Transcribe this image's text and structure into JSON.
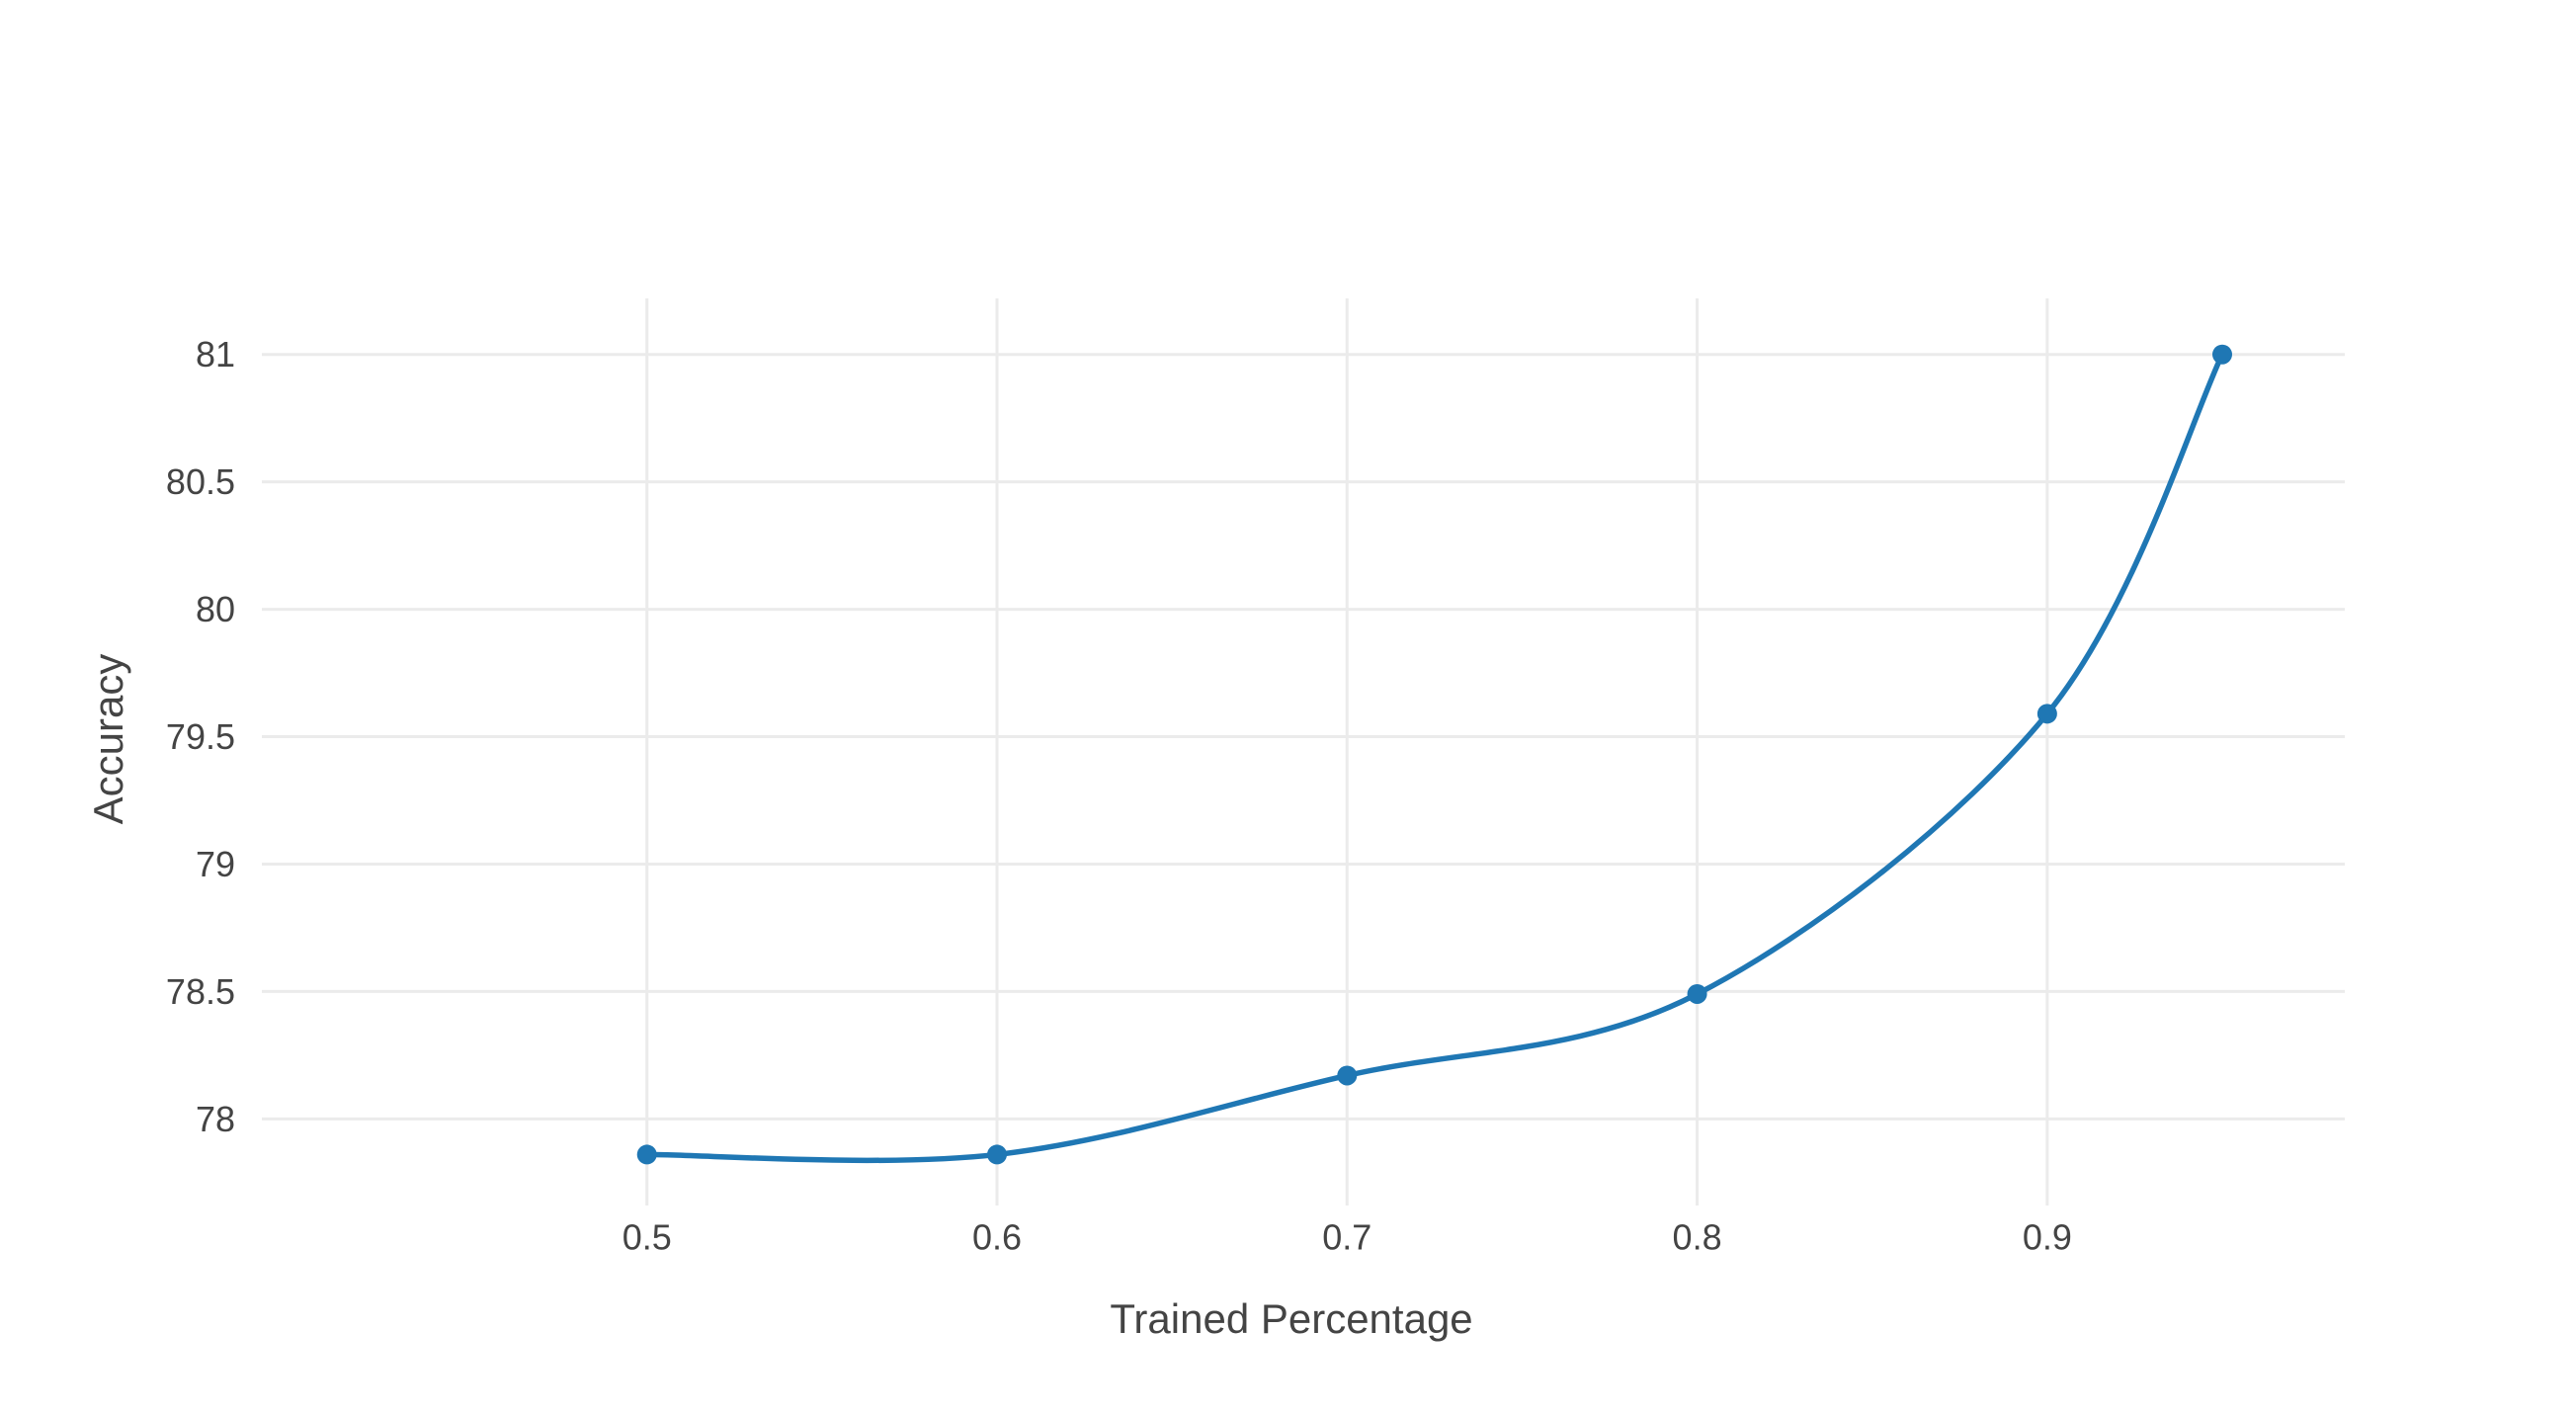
{
  "chart_data": {
    "type": "line",
    "xlabel": "Trained Percentage",
    "ylabel": "Accuracy",
    "xlim": [
      0.39,
      0.985
    ],
    "ylim": [
      77.66,
      81.22
    ],
    "x_ticks": [
      0.5,
      0.6,
      0.7,
      0.8,
      0.9
    ],
    "x_tick_labels": [
      "0.5",
      "0.6",
      "0.7",
      "0.8",
      "0.9"
    ],
    "y_ticks": [
      78,
      78.5,
      79,
      79.5,
      80,
      80.5,
      81
    ],
    "y_tick_labels": [
      "78",
      "78.5",
      "79",
      "79.5",
      "80",
      "80.5",
      "81"
    ],
    "grid": true,
    "legend": false,
    "line_shape": "spline",
    "colors": {
      "series": "#1f77b4",
      "grid": "#ebebeb",
      "text": "#444444"
    },
    "series": [
      {
        "x": [
          0.5,
          0.6,
          0.7,
          0.8,
          0.9,
          0.95
        ],
        "y": [
          77.86,
          77.86,
          78.17,
          78.49,
          79.59,
          81.0
        ]
      }
    ]
  }
}
